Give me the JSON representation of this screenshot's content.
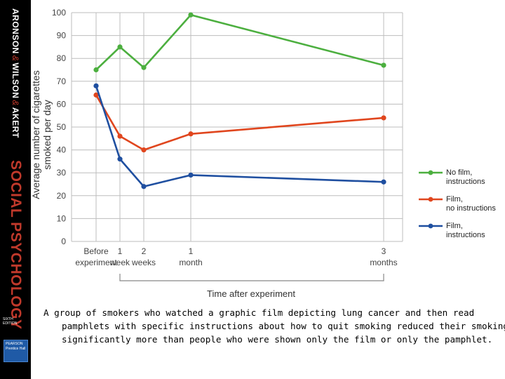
{
  "spine": {
    "authors_1": "ARONSON",
    "amp_1": "&",
    "authors_2": "WILSON",
    "amp_2": "&",
    "authors_3": "AKERT",
    "title": "SOCIAL PSYCHOLOGY",
    "edition": "SIXTH EDITION",
    "publisher": "PEARSON Prentice Hall",
    "title_color": "#c0392b",
    "publisher_color": "#1f5aa6"
  },
  "chart_data": {
    "type": "line",
    "title": "",
    "xlabel": "Time after experiment",
    "ylabel_line1": "Average number of cigarettes",
    "ylabel_line2": "smoked per day",
    "ylim": [
      0,
      100
    ],
    "yticks": [
      0,
      10,
      20,
      30,
      40,
      50,
      60,
      70,
      80,
      90,
      100
    ],
    "grid": true,
    "legend_position": "right",
    "x_positions": [
      0,
      1,
      2,
      4,
      12
    ],
    "categories": [
      {
        "line1": "Before",
        "line2": "experiment"
      },
      {
        "line1": "1",
        "line2": "week"
      },
      {
        "line1": "2",
        "line2": "weeks"
      },
      {
        "line1": "1",
        "line2": "month"
      },
      {
        "line1": "3",
        "line2": "months"
      }
    ],
    "series": [
      {
        "name": "No film,\ninstructions",
        "color": "#4caf3f",
        "values": [
          75,
          85,
          76,
          99,
          77
        ]
      },
      {
        "name": "Film,\nno instructions",
        "color": "#e0461e",
        "values": [
          64,
          46,
          40,
          47,
          54
        ]
      },
      {
        "name": "Film,\ninstructions",
        "color": "#1f4fa0",
        "values": [
          68,
          36,
          24,
          29,
          26
        ]
      }
    ]
  },
  "caption": "A group of smokers who watched a graphic film depicting lung cancer and then read pamphlets with specific instructions about how to quit smoking  reduced their smoking significantly more than people who were shown only the film or only the pamphlet."
}
